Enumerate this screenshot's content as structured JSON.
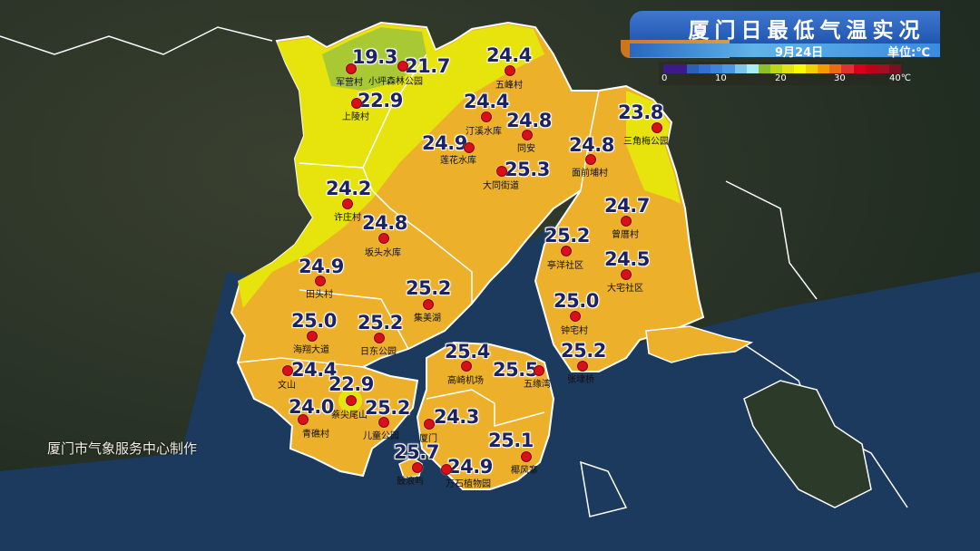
{
  "header": {
    "title": "厦门日最低气温实况",
    "date": "9月24日",
    "unit": "单位:℃"
  },
  "legend": {
    "colors": [
      "#3d1a8a",
      "#3d1a8a",
      "#2c5fb8",
      "#3570d0",
      "#3e82da",
      "#4c97e2",
      "#7cc6ea",
      "#a8f0f0",
      "#8cc02a",
      "#b8d818",
      "#e4e414",
      "#fafa00",
      "#f0d000",
      "#f59a00",
      "#ee6a10",
      "#e03030",
      "#d8001a",
      "#c00018",
      "#a01020",
      "#7a1020"
    ],
    "ticks": [
      "0",
      "10",
      "20",
      "30",
      "40℃"
    ]
  },
  "credit": "厦门市气象服务中心制作",
  "colors": {
    "land_warm": "#ecb02a",
    "land_mild": "#e6e40c",
    "land_cool": "#a8c834",
    "water": "#1b3a5e",
    "dot": "#d8101a",
    "value_text": "#1d2262"
  },
  "stations": [
    {
      "name": "军营村",
      "value": "19.3"
    },
    {
      "name": "小坪森林公园",
      "value": "21.7"
    },
    {
      "name": "上陵村",
      "value": "22.9"
    },
    {
      "name": "五峰村",
      "value": "24.4"
    },
    {
      "name": "汀溪水库",
      "value": "24.4"
    },
    {
      "name": "同安",
      "value": "24.8"
    },
    {
      "name": "莲花水库",
      "value": "24.9"
    },
    {
      "name": "大同街道",
      "value": "25.3"
    },
    {
      "name": "三角梅公园",
      "value": "23.8"
    },
    {
      "name": "面前埔村",
      "value": "24.8"
    },
    {
      "name": "许庄村",
      "value": "24.2"
    },
    {
      "name": "坂头水库",
      "value": "24.8"
    },
    {
      "name": "曾厝村",
      "value": "24.7"
    },
    {
      "name": "亭洋社区",
      "value": "25.2"
    },
    {
      "name": "大宅社区",
      "value": "24.5"
    },
    {
      "name": "田头村",
      "value": "24.9"
    },
    {
      "name": "集美湖",
      "value": "25.2"
    },
    {
      "name": "钟宅村",
      "value": "25.0"
    },
    {
      "name": "海翔大道",
      "value": "25.0"
    },
    {
      "name": "日东公园",
      "value": "25.2"
    },
    {
      "name": "张埭桥",
      "value": "25.2"
    },
    {
      "name": "高崎机场",
      "value": "25.4"
    },
    {
      "name": "五缘湾",
      "value": "25.5"
    },
    {
      "name": "文山",
      "value": "24.4"
    },
    {
      "name": "蔡尖尾山",
      "value": "22.9"
    },
    {
      "name": "青礁村",
      "value": "24.0"
    },
    {
      "name": "儿童公园",
      "value": "25.2"
    },
    {
      "name": "厦门",
      "value": "24.3"
    },
    {
      "name": "鼓浪屿",
      "value": "25.7"
    },
    {
      "name": "万石植物园",
      "value": "24.9"
    },
    {
      "name": "椰风寨",
      "value": "25.1"
    }
  ]
}
